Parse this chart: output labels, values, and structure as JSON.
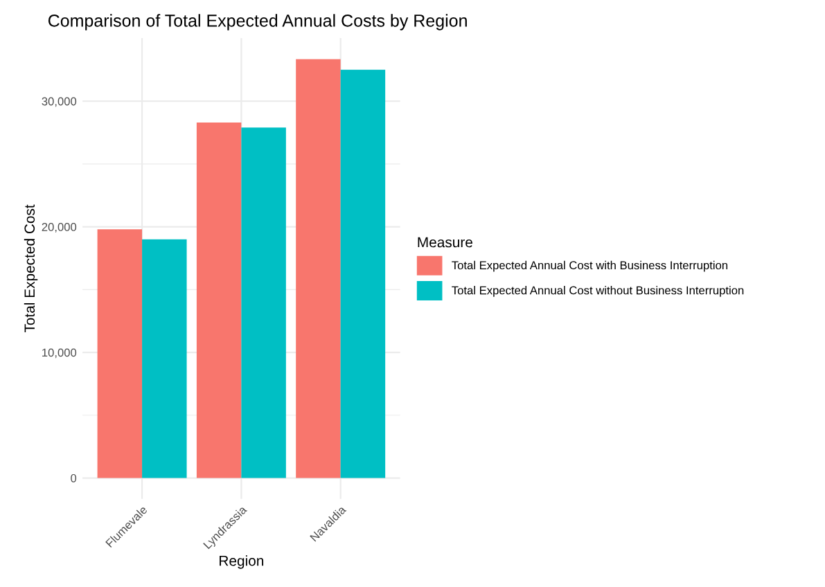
{
  "chart_data": {
    "type": "bar",
    "title": "Comparison of Total Expected Annual Costs by Region",
    "xlabel": "Region",
    "ylabel": "Total Expected Cost",
    "legend_title": "Measure",
    "categories": [
      "Flumevale",
      "Lyndrassia",
      "Navaldia"
    ],
    "series": [
      {
        "name": "Total Expected Annual Cost with Business Interruption",
        "color": "#f8766d",
        "values": [
          19800,
          28300,
          33350
        ]
      },
      {
        "name": "Total Expected Annual Cost without Business Interruption",
        "color": "#00bfc4",
        "values": [
          19000,
          27900,
          32500
        ]
      }
    ],
    "ylim": [
      -1668,
      35018
    ],
    "yticks": [
      0,
      {
        "value": 5000,
        "label": null
      },
      {
        "value": 10000,
        "label": "10,000"
      },
      {
        "value": 15000,
        "label": null
      },
      {
        "value": 20000,
        "label": "20,000"
      },
      {
        "value": 25000,
        "label": null
      },
      {
        "value": 30000,
        "label": "30,000"
      }
    ],
    "grid": true,
    "legend": "right"
  }
}
